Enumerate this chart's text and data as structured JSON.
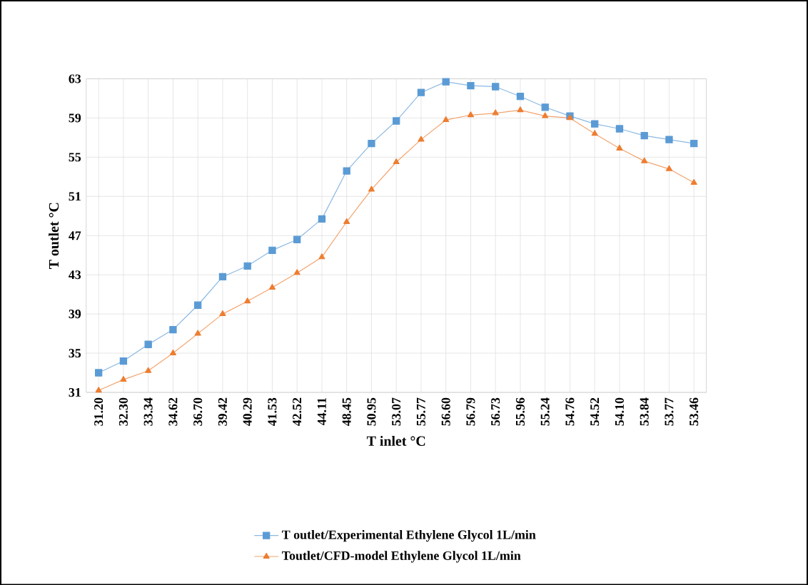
{
  "chart_data": {
    "type": "line",
    "xlabel": "T inlet °C",
    "ylabel": "T outlet °C",
    "categories": [
      "31.20",
      "32.30",
      "33.34",
      "34.62",
      "36.70",
      "39.42",
      "40.29",
      "41.53",
      "42.52",
      "44.11",
      "48.45",
      "50.95",
      "53.07",
      "55.77",
      "56.60",
      "56.79",
      "56.73",
      "55.96",
      "55.24",
      "54.76",
      "54.52",
      "54.10",
      "53.84",
      "53.77",
      "53.46"
    ],
    "series": [
      {
        "name": "T outlet/Experimental Ethylene Glycol 1L/min",
        "color": "#5b9bd5",
        "marker": "square",
        "values": [
          33.0,
          34.2,
          35.9,
          37.4,
          39.9,
          42.8,
          43.9,
          45.5,
          46.6,
          48.7,
          53.6,
          56.4,
          58.7,
          61.6,
          62.7,
          62.3,
          62.2,
          61.2,
          60.1,
          59.2,
          58.4,
          57.9,
          57.2,
          56.8,
          56.4
        ]
      },
      {
        "name": "Toutlet/CFD-model Ethylene Glycol 1L/min",
        "color": "#ed7d31",
        "marker": "triangle",
        "values": [
          31.2,
          32.3,
          33.2,
          35.0,
          37.0,
          39.0,
          40.3,
          41.7,
          43.2,
          44.8,
          48.4,
          51.7,
          54.5,
          56.8,
          58.8,
          59.3,
          59.5,
          59.8,
          59.2,
          59.0,
          57.4,
          55.9,
          54.6,
          53.8,
          52.4
        ]
      }
    ],
    "ylim": [
      31,
      63
    ],
    "yticks": [
      31,
      35,
      39,
      43,
      47,
      51,
      55,
      59,
      63
    ],
    "grid": true,
    "legend": "bottom",
    "line_style": "solid"
  }
}
